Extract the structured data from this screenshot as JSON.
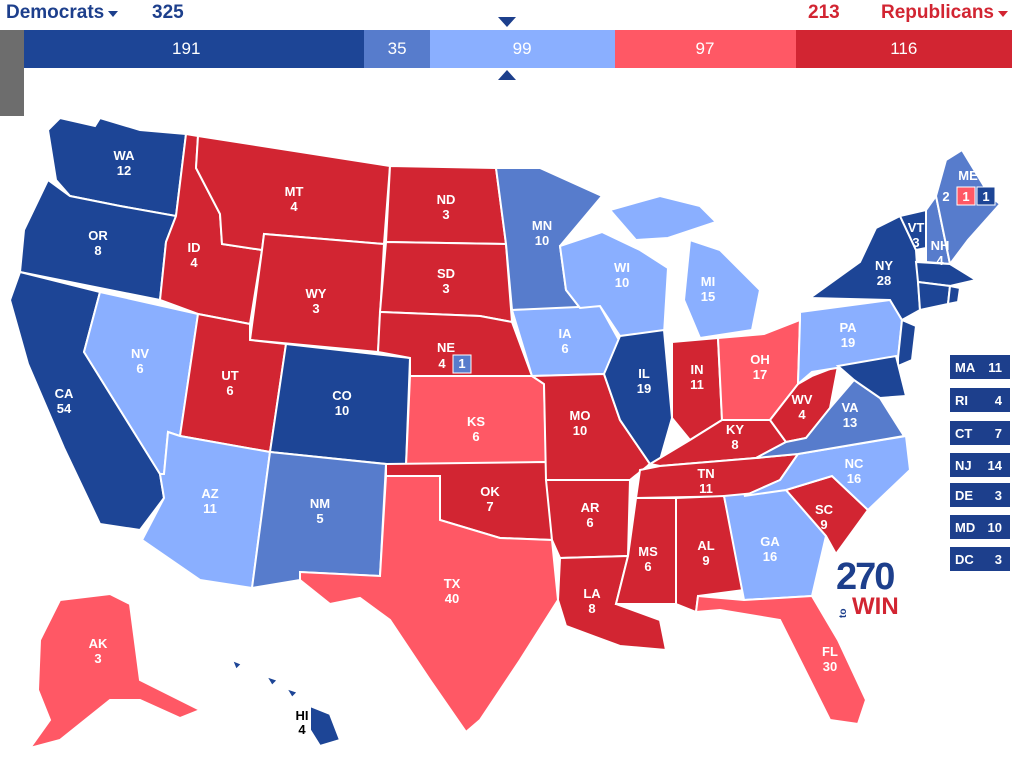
{
  "header": {
    "dem_label": "Democrats",
    "dem_total": "325",
    "rep_label": "Republicans",
    "rep_total": "213"
  },
  "colors": {
    "safe_dem": "#1d4596",
    "likely_dem": "#577ccc",
    "lean_dem": "#8aafff",
    "lean_rep": "#ff5865",
    "safe_rep": "#d22532",
    "likely_rep": "#d22532"
  },
  "bar": [
    {
      "value": "191",
      "units": 191,
      "color": "#1d4596"
    },
    {
      "value": "35",
      "units": 35,
      "color": "#577ccc"
    },
    {
      "value": "99",
      "units": 99,
      "color": "#8aafff"
    },
    {
      "value": "97",
      "units": 97,
      "color": "#ff5865"
    },
    {
      "value": "116",
      "units": 116,
      "color": "#d22532"
    }
  ],
  "states": {
    "WA": {
      "name": "WA",
      "ev": "12"
    },
    "OR": {
      "name": "OR",
      "ev": "8"
    },
    "CA": {
      "name": "CA",
      "ev": "54"
    },
    "NV": {
      "name": "NV",
      "ev": "6"
    },
    "ID": {
      "name": "ID",
      "ev": "4"
    },
    "MT": {
      "name": "MT",
      "ev": "4"
    },
    "WY": {
      "name": "WY",
      "ev": "3"
    },
    "UT": {
      "name": "UT",
      "ev": "6"
    },
    "AZ": {
      "name": "AZ",
      "ev": "11"
    },
    "CO": {
      "name": "CO",
      "ev": "10"
    },
    "NM": {
      "name": "NM",
      "ev": "5"
    },
    "ND": {
      "name": "ND",
      "ev": "3"
    },
    "SD": {
      "name": "SD",
      "ev": "3"
    },
    "NE": {
      "name": "NE",
      "ev": "4",
      "cd": "1"
    },
    "KS": {
      "name": "KS",
      "ev": "6"
    },
    "OK": {
      "name": "OK",
      "ev": "7"
    },
    "TX": {
      "name": "TX",
      "ev": "40"
    },
    "MN": {
      "name": "MN",
      "ev": "10"
    },
    "IA": {
      "name": "IA",
      "ev": "6"
    },
    "MO": {
      "name": "MO",
      "ev": "10"
    },
    "AR": {
      "name": "AR",
      "ev": "6"
    },
    "LA": {
      "name": "LA",
      "ev": "8"
    },
    "WI": {
      "name": "WI",
      "ev": "10"
    },
    "IL": {
      "name": "IL",
      "ev": "19"
    },
    "MI": {
      "name": "MI",
      "ev": "15"
    },
    "IN": {
      "name": "IN",
      "ev": "11"
    },
    "OH": {
      "name": "OH",
      "ev": "17"
    },
    "KY": {
      "name": "KY",
      "ev": "8"
    },
    "TN": {
      "name": "TN",
      "ev": "11"
    },
    "MS": {
      "name": "MS",
      "ev": "6"
    },
    "AL": {
      "name": "AL",
      "ev": "9"
    },
    "GA": {
      "name": "GA",
      "ev": "16"
    },
    "FL": {
      "name": "FL",
      "ev": "30"
    },
    "SC": {
      "name": "SC",
      "ev": "9"
    },
    "NC": {
      "name": "NC",
      "ev": "16"
    },
    "VA": {
      "name": "VA",
      "ev": "13"
    },
    "WV": {
      "name": "WV",
      "ev": "4"
    },
    "PA": {
      "name": "PA",
      "ev": "19"
    },
    "NY": {
      "name": "NY",
      "ev": "28"
    },
    "VT": {
      "name": "VT",
      "ev": "3"
    },
    "NH": {
      "name": "NH",
      "ev": "4"
    },
    "ME": {
      "name": "ME",
      "cd_left": "2",
      "cd_mid": "1",
      "cd_right": "1"
    },
    "AK": {
      "name": "AK",
      "ev": "3"
    },
    "HI": {
      "name": "HI",
      "ev": "4"
    }
  },
  "small_states": [
    {
      "name": "MA",
      "ev": "11"
    },
    {
      "name": "RI",
      "ev": "4"
    },
    {
      "name": "CT",
      "ev": "7"
    },
    {
      "name": "NJ",
      "ev": "14"
    },
    {
      "name": "DE",
      "ev": "3"
    },
    {
      "name": "MD",
      "ev": "10"
    },
    {
      "name": "DC",
      "ev": "3"
    }
  ],
  "logo": {
    "num": "270",
    "to": "to",
    "win": "WIN"
  }
}
